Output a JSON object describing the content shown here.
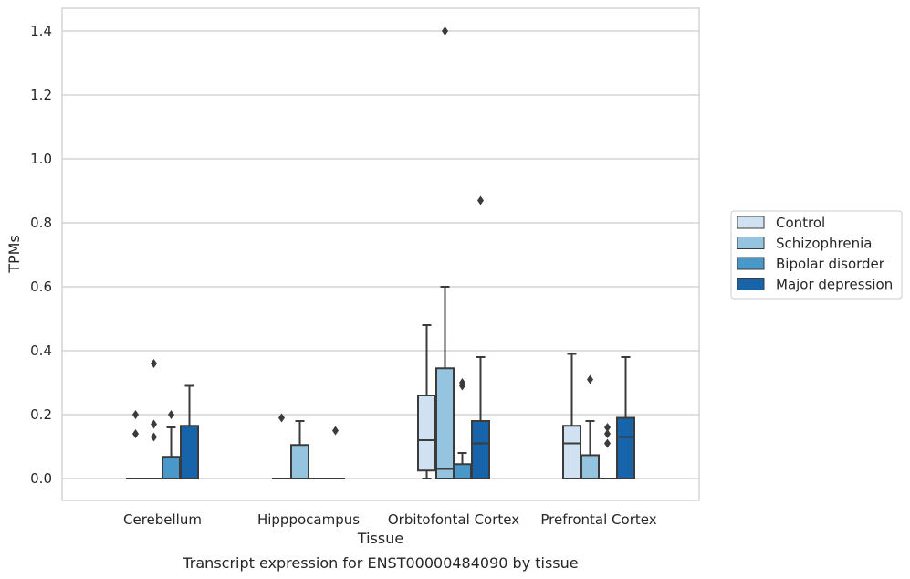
{
  "caption": "Transcript expression for ENST00000484090 by tissue",
  "chart_data": {
    "type": "box",
    "xlabel": "Tissue",
    "ylabel": "TPMs",
    "ylim": [
      -0.07,
      1.47
    ],
    "yticks": [
      "0.0",
      "0.2",
      "0.4",
      "0.6",
      "0.8",
      "1.0",
      "1.2",
      "1.4"
    ],
    "grid": true,
    "legend_position": "right",
    "categories": [
      "Cerebellum",
      "Hipppocampus",
      "Orbitofontal Cortex",
      "Prefrontal Cortex"
    ],
    "series": [
      {
        "name": "Control",
        "color": "#d0e1f2",
        "boxes": [
          {
            "q1": 0,
            "median": 0,
            "q3": 0,
            "whisker_low": 0,
            "whisker_high": 0,
            "outliers": [
              0.2,
              0.14
            ]
          },
          {
            "q1": 0,
            "median": 0,
            "q3": 0,
            "whisker_low": 0,
            "whisker_high": 0,
            "outliers": [
              0.19
            ]
          },
          {
            "q1": 0.025,
            "median": 0.12,
            "q3": 0.26,
            "whisker_low": 0,
            "whisker_high": 0.48,
            "outliers": []
          },
          {
            "q1": 0,
            "median": 0.11,
            "q3": 0.165,
            "whisker_low": 0,
            "whisker_high": 0.39,
            "outliers": []
          }
        ]
      },
      {
        "name": "Schizophrenia",
        "color": "#94c4df",
        "boxes": [
          {
            "q1": 0,
            "median": 0,
            "q3": 0,
            "whisker_low": 0,
            "whisker_high": 0,
            "outliers": [
              0.36,
              0.17,
              0.13
            ]
          },
          {
            "q1": 0,
            "median": 0,
            "q3": 0.105,
            "whisker_low": 0,
            "whisker_high": 0.18,
            "outliers": []
          },
          {
            "q1": 0,
            "median": 0.03,
            "q3": 0.345,
            "whisker_low": 0,
            "whisker_high": 0.6,
            "outliers": [
              1.4
            ]
          },
          {
            "q1": 0,
            "median": 0,
            "q3": 0.073,
            "whisker_low": 0,
            "whisker_high": 0.18,
            "outliers": [
              0.31
            ]
          }
        ]
      },
      {
        "name": "Bipolar disorder",
        "color": "#4a98c9",
        "boxes": [
          {
            "q1": 0,
            "median": 0,
            "q3": 0.068,
            "whisker_low": 0,
            "whisker_high": 0.16,
            "outliers": [
              0.2
            ]
          },
          {
            "q1": 0,
            "median": 0,
            "q3": 0,
            "whisker_low": 0,
            "whisker_high": 0,
            "outliers": []
          },
          {
            "q1": 0,
            "median": 0,
            "q3": 0.045,
            "whisker_low": 0,
            "whisker_high": 0.08,
            "outliers": [
              0.29,
              0.3
            ]
          },
          {
            "q1": 0,
            "median": 0,
            "q3": 0,
            "whisker_low": 0,
            "whisker_high": 0,
            "outliers": [
              0.16,
              0.14,
              0.11
            ]
          }
        ]
      },
      {
        "name": "Major depression",
        "color": "#1764ab",
        "boxes": [
          {
            "q1": 0,
            "median": 0,
            "q3": 0.165,
            "whisker_low": 0,
            "whisker_high": 0.29,
            "outliers": []
          },
          {
            "q1": 0,
            "median": 0,
            "q3": 0,
            "whisker_low": 0,
            "whisker_high": 0,
            "outliers": [
              0.15
            ]
          },
          {
            "q1": 0,
            "median": 0.11,
            "q3": 0.18,
            "whisker_low": 0,
            "whisker_high": 0.38,
            "outliers": [
              0.87
            ]
          },
          {
            "q1": 0,
            "median": 0.13,
            "q3": 0.19,
            "whisker_low": 0,
            "whisker_high": 0.38,
            "outliers": []
          }
        ]
      }
    ]
  }
}
